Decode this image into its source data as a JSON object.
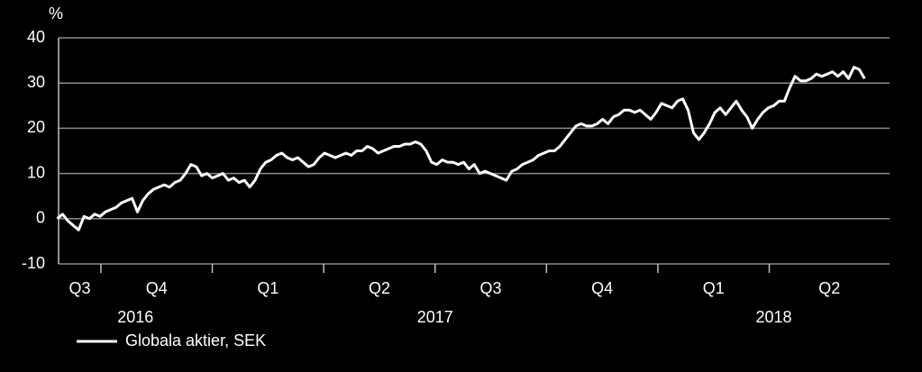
{
  "chart_data": {
    "type": "line",
    "y_label": "%",
    "x": [
      2016.652,
      2016.664,
      2016.676,
      2016.688,
      2016.7,
      2016.712,
      2016.724,
      2016.736,
      2016.748,
      2016.76,
      2016.772,
      2016.784,
      2016.796,
      2016.808,
      2016.82,
      2016.832,
      2016.844,
      2016.856,
      2016.868,
      2016.88,
      2016.892,
      2016.904,
      2016.916,
      2016.928,
      2016.94,
      2016.952,
      2016.964,
      2016.976,
      2016.988,
      2017.0,
      2017.012,
      2017.024,
      2017.036,
      2017.048,
      2017.06,
      2017.072,
      2017.084,
      2017.096,
      2017.108,
      2017.12,
      2017.132,
      2017.144,
      2017.156,
      2017.168,
      2017.18,
      2017.192,
      2017.204,
      2017.216,
      2017.228,
      2017.24,
      2017.252,
      2017.264,
      2017.276,
      2017.288,
      2017.3,
      2017.312,
      2017.324,
      2017.336,
      2017.348,
      2017.36,
      2017.372,
      2017.384,
      2017.396,
      2017.408,
      2017.42,
      2017.432,
      2017.444,
      2017.456,
      2017.468,
      2017.48,
      2017.492,
      2017.504,
      2017.516,
      2017.528,
      2017.54,
      2017.552,
      2017.564,
      2017.576,
      2017.588,
      2017.6,
      2017.612,
      2017.624,
      2017.636,
      2017.648,
      2017.66,
      2017.672,
      2017.684,
      2017.696,
      2017.708,
      2017.72,
      2017.732,
      2017.744,
      2017.756,
      2017.768,
      2017.78,
      2017.792,
      2017.804,
      2017.816,
      2017.828,
      2017.84,
      2017.852,
      2017.864,
      2017.876,
      2017.888,
      2017.9,
      2017.912,
      2017.924,
      2017.936,
      2017.948,
      2017.96,
      2017.972,
      2017.984,
      2017.996,
      2018.008,
      2018.02,
      2018.032,
      2018.044,
      2018.056,
      2018.068,
      2018.08,
      2018.092,
      2018.104,
      2018.116,
      2018.128,
      2018.14,
      2018.152,
      2018.164,
      2018.176,
      2018.188,
      2018.2,
      2018.212,
      2018.224,
      2018.236,
      2018.248,
      2018.26,
      2018.272,
      2018.284,
      2018.296,
      2018.308,
      2018.32,
      2018.332,
      2018.344,
      2018.356,
      2018.368,
      2018.38,
      2018.392,
      2018.404,
      2018.416,
      2018.428,
      2018.44,
      2018.452,
      2018.464
    ],
    "series": [
      {
        "name": "Globala aktier, SEK",
        "color": "#ffffff",
        "values": [
          0,
          1,
          -0.5,
          -1.5,
          -2.5,
          0.5,
          0,
          1,
          0.5,
          1.5,
          2,
          2.5,
          3.5,
          4,
          4.5,
          1.5,
          4,
          5.5,
          6.5,
          7,
          7.5,
          7,
          8,
          8.5,
          10,
          12,
          11.5,
          9.5,
          10,
          9,
          9.5,
          10,
          8.5,
          9,
          8,
          8.5,
          7,
          8.5,
          11,
          12.5,
          13,
          14,
          14.5,
          13.5,
          13,
          13.5,
          12.5,
          11.5,
          12,
          13.5,
          14.5,
          14,
          13.5,
          14,
          14.5,
          14,
          15,
          15,
          16,
          15.5,
          14.5,
          15,
          15.5,
          16,
          16,
          16.5,
          16.5,
          17,
          16.5,
          15,
          12.5,
          12,
          13,
          12.5,
          12.5,
          12,
          12.5,
          11,
          12,
          10,
          10.5,
          10,
          9.5,
          9,
          8.5,
          10.5,
          11,
          12,
          12.5,
          13,
          14,
          14.5,
          15,
          15,
          16,
          17.5,
          19,
          20.5,
          21,
          20.5,
          20.5,
          21,
          22,
          21,
          22.5,
          23,
          24,
          24,
          23.5,
          24,
          23,
          22,
          23.5,
          25.5,
          25,
          24.5,
          26,
          26.5,
          24,
          19,
          17.5,
          19,
          21,
          23.5,
          24.5,
          23,
          24.5,
          26,
          24,
          22.5,
          20,
          22,
          23.5,
          24.5,
          25,
          26,
          26,
          29,
          31.5,
          30.5,
          30.5,
          31,
          32,
          31.5,
          32,
          32.5,
          31.5,
          32.5,
          31,
          33.5,
          33,
          31
        ]
      }
    ],
    "xlim": [
      2016.655,
      2018.52
    ],
    "xticks": [
      2016.75,
      2017,
      2017.25,
      2017.5,
      2017.75,
      2018,
      2018.25
    ],
    "quarter_labels": [
      "Q3",
      "Q4",
      "Q1",
      "Q2",
      "Q3",
      "Q4",
      "Q1",
      "Q2"
    ],
    "year_labels": [
      "2016",
      "2017",
      "2018"
    ],
    "ylim": [
      -10,
      40
    ],
    "yticks": [
      -10,
      0,
      10,
      20,
      30,
      40
    ],
    "grid": true
  }
}
